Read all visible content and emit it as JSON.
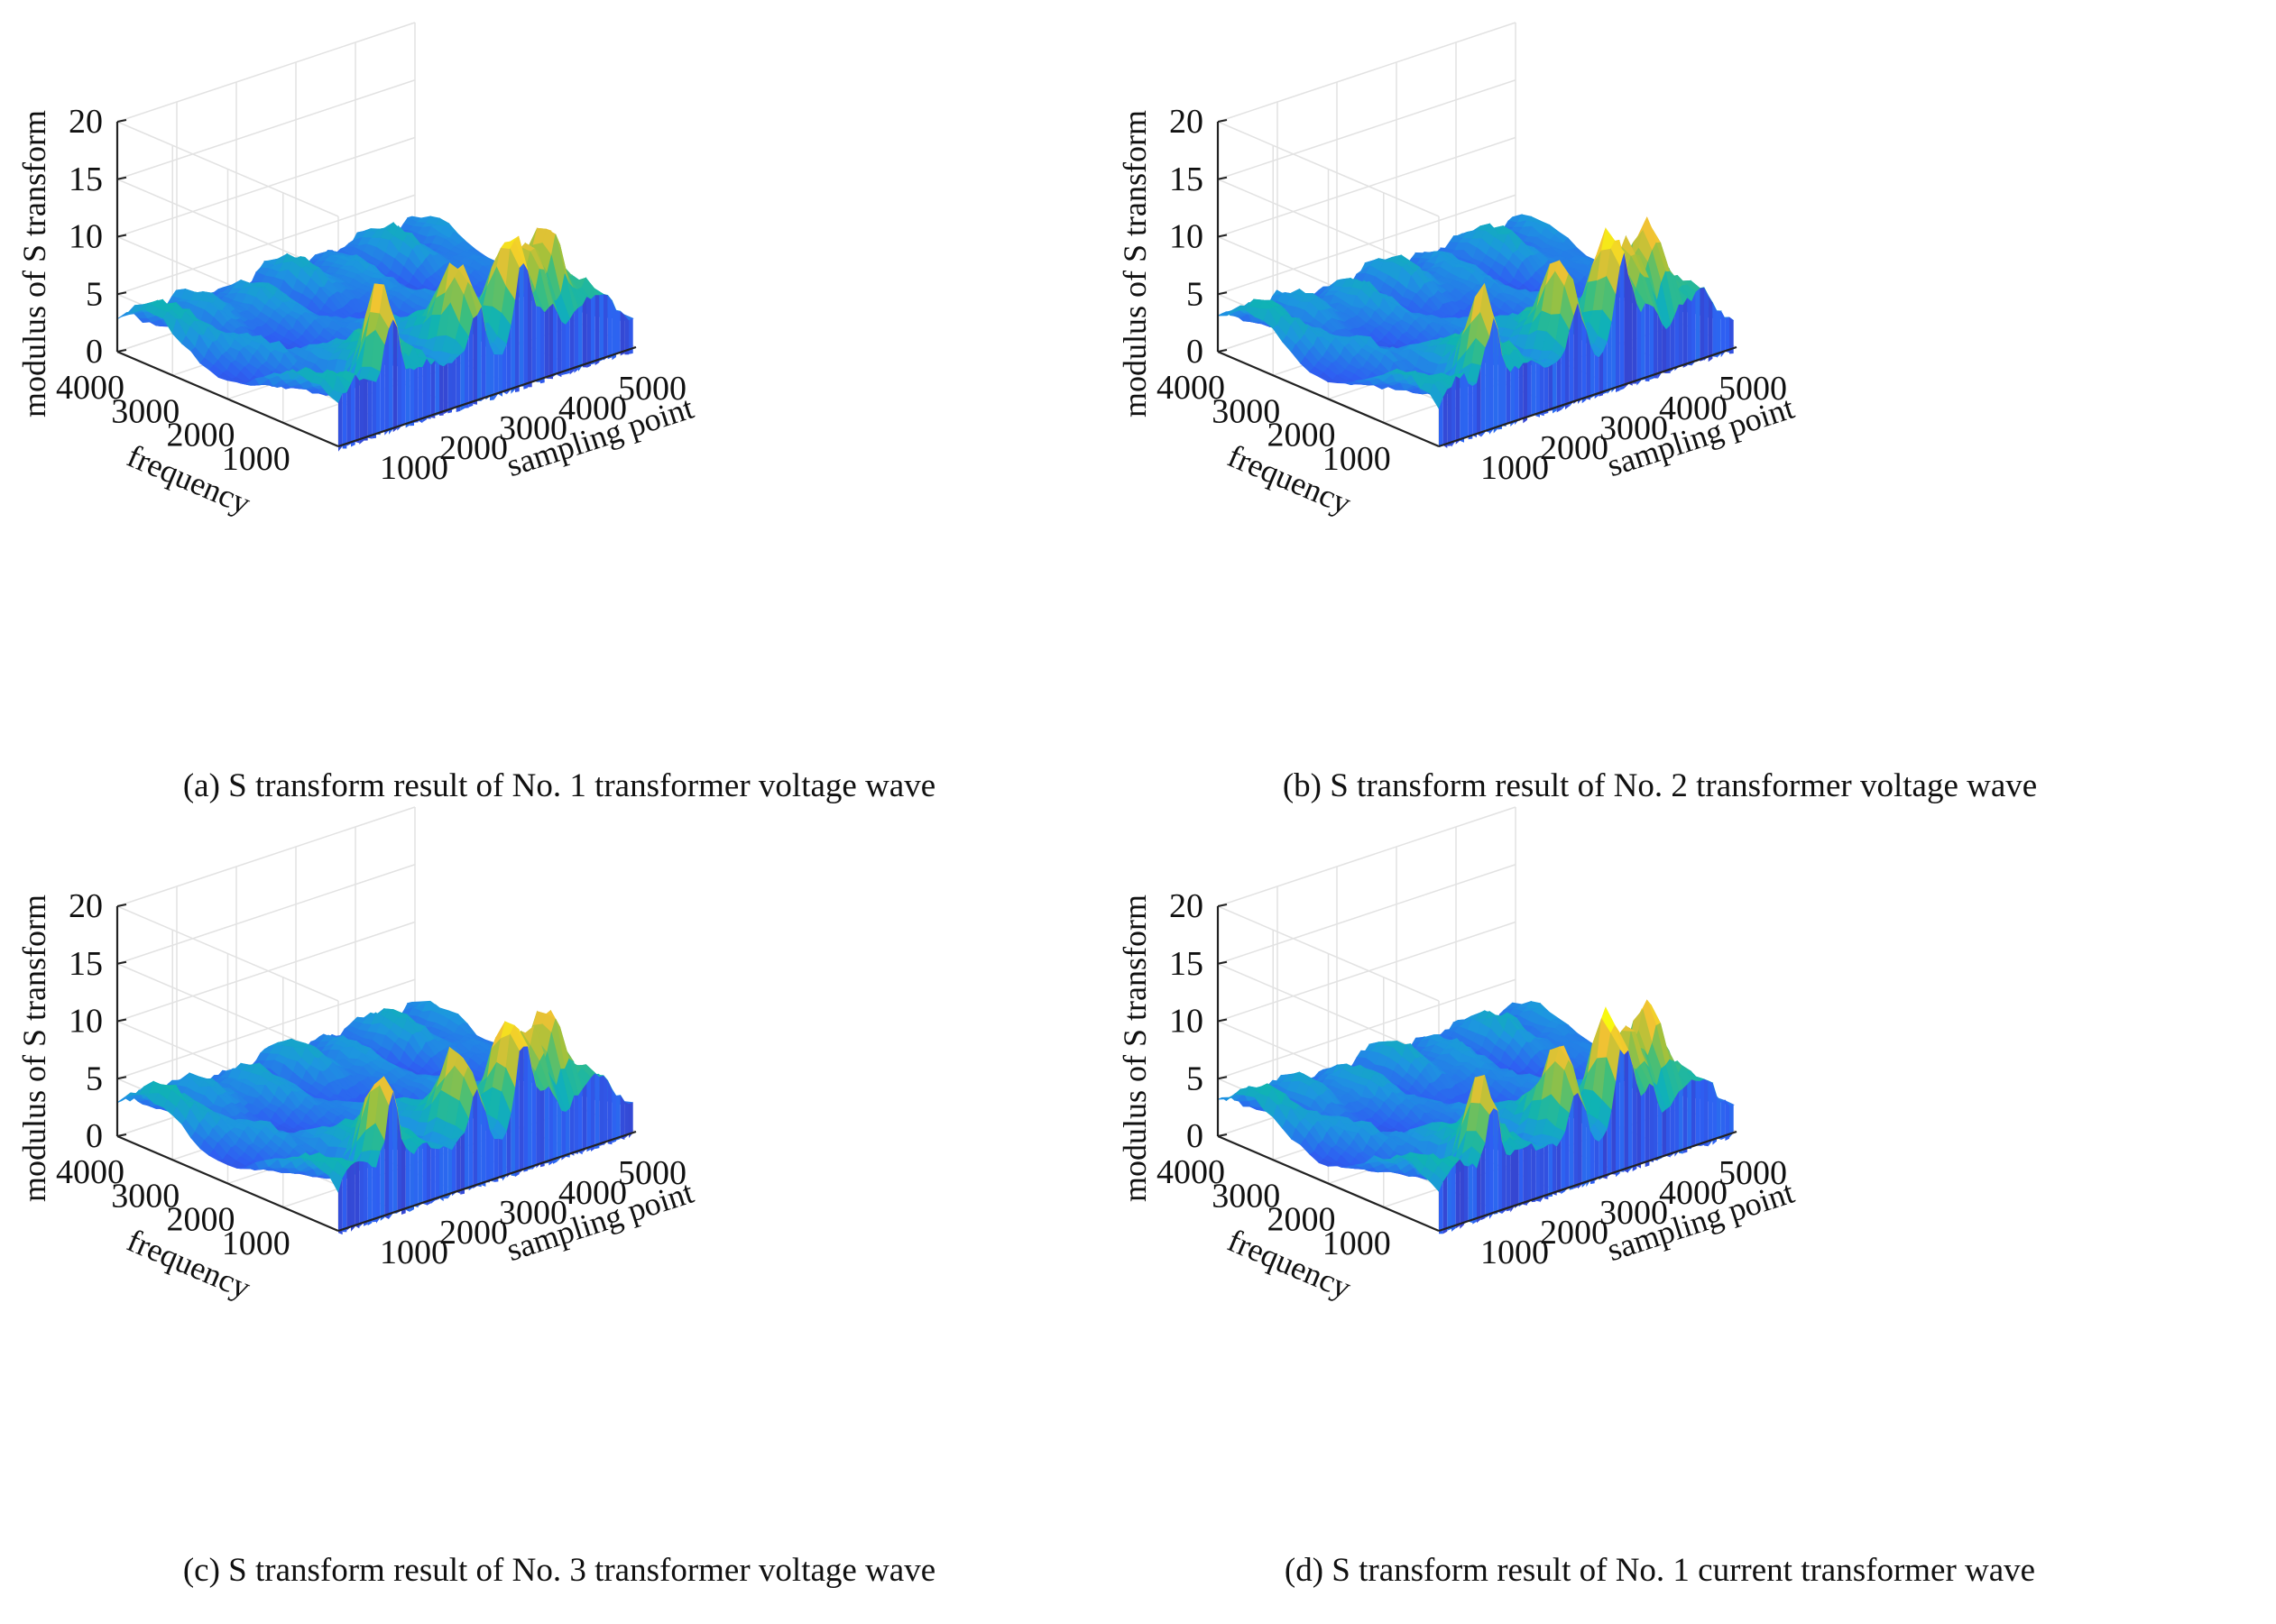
{
  "figure": {
    "panels": [
      {
        "caption": "(a) S transform result of No. 1 transformer voltage wave"
      },
      {
        "caption": "(b) S transform result of No. 2 transformer voltage wave"
      },
      {
        "caption": "(c) S transform result of No. 3 transformer voltage wave"
      },
      {
        "caption": "(d) S transform result of No. 1 current transformer wave"
      }
    ]
  },
  "chart_data": [
    {
      "type": "surface",
      "zlabel": "modulus of S transform",
      "xlabel": "sampling point",
      "ylabel": "frequency",
      "zlim": [
        0,
        20
      ],
      "xlim": [
        0,
        5000
      ],
      "ylim": [
        0,
        4000
      ],
      "z_ticks": [
        "0",
        "5",
        "10",
        "15",
        "20"
      ],
      "x_ticks": [
        "1000",
        "2000",
        "3000",
        "4000",
        "5000"
      ],
      "y_ticks": [
        "1000",
        "2000",
        "3000",
        "4000"
      ],
      "grid": true,
      "colormap": [
        "#3e26a8",
        "#2e5ff2",
        "#1d96e0",
        "#0fb3b4",
        "#3cbe7e",
        "#a6c13a",
        "#f0c233",
        "#f9fb0e"
      ],
      "peaks": [
        {
          "sampling_point": 900,
          "frequency": 200,
          "modulus": 11.5
        },
        {
          "sampling_point": 2350,
          "frequency": 300,
          "modulus": 9.0
        },
        {
          "sampling_point": 3100,
          "frequency": 250,
          "modulus": 9.5
        },
        {
          "sampling_point": 3600,
          "frequency": 400,
          "modulus": 9.8
        },
        {
          "sampling_point": 3950,
          "frequency": 500,
          "modulus": 9.6
        }
      ]
    },
    {
      "type": "surface",
      "zlabel": "modulus of S transform",
      "xlabel": "sampling point",
      "ylabel": "frequency",
      "zlim": [
        0,
        20
      ],
      "xlim": [
        0,
        5000
      ],
      "ylim": [
        0,
        4000
      ],
      "z_ticks": [
        "0",
        "5",
        "10",
        "15",
        "20"
      ],
      "x_ticks": [
        "1000",
        "2000",
        "3000",
        "4000",
        "5000"
      ],
      "y_ticks": [
        "1000",
        "2000",
        "3000",
        "4000"
      ],
      "grid": true,
      "colormap": [
        "#3e26a8",
        "#2e5ff2",
        "#1d96e0",
        "#0fb3b4",
        "#3cbe7e",
        "#a6c13a",
        "#f0c233",
        "#f9fb0e"
      ],
      "peaks": [
        {
          "sampling_point": 900,
          "frequency": 200,
          "modulus": 11.0
        },
        {
          "sampling_point": 2350,
          "frequency": 300,
          "modulus": 9.0
        },
        {
          "sampling_point": 3100,
          "frequency": 250,
          "modulus": 9.5
        },
        {
          "sampling_point": 3600,
          "frequency": 400,
          "modulus": 9.8
        },
        {
          "sampling_point": 3950,
          "frequency": 500,
          "modulus": 9.6
        }
      ]
    },
    {
      "type": "surface",
      "zlabel": "modulus of S transform",
      "xlabel": "sampling point",
      "ylabel": "frequency",
      "zlim": [
        0,
        20
      ],
      "xlim": [
        0,
        5000
      ],
      "ylim": [
        0,
        4000
      ],
      "z_ticks": [
        "0",
        "5",
        "10",
        "15",
        "20"
      ],
      "x_ticks": [
        "1000",
        "2000",
        "3000",
        "4000",
        "5000"
      ],
      "y_ticks": [
        "1000",
        "2000",
        "3000",
        "4000"
      ],
      "grid": true,
      "colormap": [
        "#3e26a8",
        "#2e5ff2",
        "#1d96e0",
        "#0fb3b4",
        "#3cbe7e",
        "#a6c13a",
        "#f0c233",
        "#f9fb0e"
      ],
      "peaks": [
        {
          "sampling_point": 900,
          "frequency": 200,
          "modulus": 11.5
        },
        {
          "sampling_point": 2350,
          "frequency": 300,
          "modulus": 9.2
        },
        {
          "sampling_point": 3100,
          "frequency": 250,
          "modulus": 9.4
        },
        {
          "sampling_point": 3600,
          "frequency": 400,
          "modulus": 9.8
        },
        {
          "sampling_point": 3950,
          "frequency": 500,
          "modulus": 9.4
        }
      ]
    },
    {
      "type": "surface",
      "zlabel": "modulus of S transform",
      "xlabel": "sampling point",
      "ylabel": "frequency",
      "zlim": [
        0,
        20
      ],
      "xlim": [
        0,
        5000
      ],
      "ylim": [
        0,
        4000
      ],
      "z_ticks": [
        "0",
        "5",
        "10",
        "15",
        "20"
      ],
      "x_ticks": [
        "1000",
        "2000",
        "3000",
        "4000",
        "5000"
      ],
      "y_ticks": [
        "1000",
        "2000",
        "3000",
        "4000"
      ],
      "grid": true,
      "colormap": [
        "#3e26a8",
        "#2e5ff2",
        "#1d96e0",
        "#0fb3b4",
        "#3cbe7e",
        "#a6c13a",
        "#f0c233",
        "#f9fb0e"
      ],
      "peaks": [
        {
          "sampling_point": 900,
          "frequency": 200,
          "modulus": 11.0
        },
        {
          "sampling_point": 2350,
          "frequency": 300,
          "modulus": 9.0
        },
        {
          "sampling_point": 3100,
          "frequency": 250,
          "modulus": 9.5
        },
        {
          "sampling_point": 3600,
          "frequency": 400,
          "modulus": 9.8
        },
        {
          "sampling_point": 3950,
          "frequency": 500,
          "modulus": 9.6
        }
      ]
    }
  ]
}
